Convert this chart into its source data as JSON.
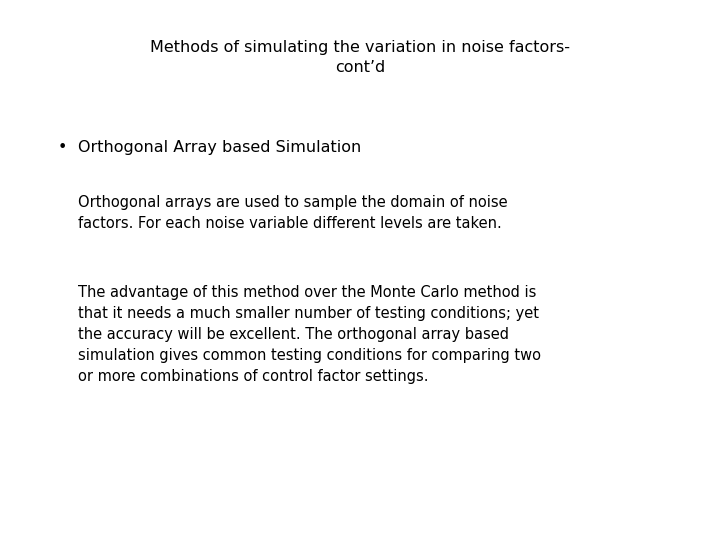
{
  "title_line1": "Methods of simulating the variation in noise factors-",
  "title_line2": "cont’d",
  "bullet_text": "Orthogonal Array based Simulation",
  "para1": "Orthogonal arrays are used to sample the domain of noise\nfactors. For each noise variable different levels are taken.",
  "para2": "The advantage of this method over the Monte Carlo method is\nthat it needs a much smaller number of testing conditions; yet\nthe accuracy will be excellent. The orthogonal array based\nsimulation gives common testing conditions for comparing two\nor more combinations of control factor settings.",
  "bg_color": "#ffffff",
  "text_color": "#000000",
  "title_fontsize": 11.5,
  "bullet_fontsize": 11.5,
  "body_fontsize": 10.5,
  "font_family": "DejaVu Sans"
}
